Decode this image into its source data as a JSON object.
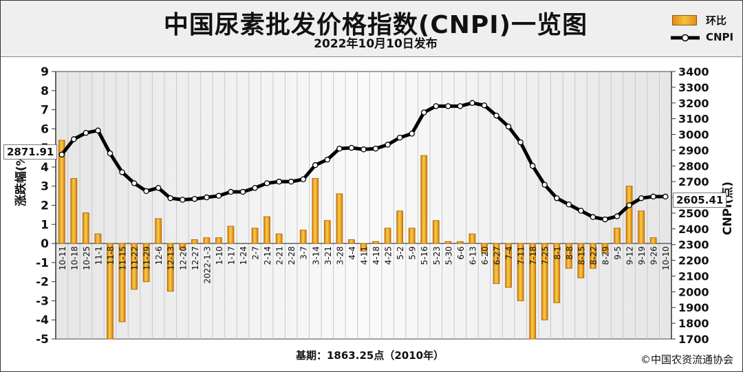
{
  "title": "中国尿素批发价格指数(CNPI)一览图",
  "subtitle": "2022年10月10日发布",
  "footer": {
    "base": "基期：1863.25点（2010年）",
    "copyright": "©中国农资流通协会"
  },
  "legend": {
    "bar_label": "环比",
    "line_label": "CNPI"
  },
  "callouts": {
    "left": "2871.91",
    "right": "2605.41"
  },
  "colors": {
    "bar_fill": "#f2b632",
    "bar_edge": "#b86a10",
    "line": "#000000",
    "marker": "#ffffff"
  },
  "chart_data": {
    "type": "bar",
    "x_labels": [
      "10-11",
      "10-18",
      "10-25",
      "11-1",
      "11-8",
      "11-15",
      "11-22",
      "11-29",
      "12-6",
      "12-13",
      "12-20",
      "12-27",
      "2022-1-3",
      "1-10",
      "1-17",
      "1-24",
      "2-7",
      "2-14",
      "2-21",
      "2-28",
      "3-7",
      "3-14",
      "3-21",
      "3-28",
      "4-4",
      "4-11",
      "4-18",
      "4-25",
      "5-2",
      "5-9",
      "5-16",
      "5-23",
      "5-30",
      "6-6",
      "6-13",
      "6-20",
      "6-27",
      "7-4",
      "7-11",
      "7-18",
      "7-25",
      "8-1",
      "8-8",
      "8-15",
      "8-22",
      "8-29",
      "9-5",
      "9-12",
      "9-19",
      "9-26",
      "10-10"
    ],
    "series": [
      {
        "name": "环比",
        "axis": "left",
        "values": [
          5.4,
          3.4,
          1.6,
          0.5,
          -5.0,
          -4.1,
          -2.4,
          -2.0,
          1.3,
          -2.5,
          -0.3,
          0.2,
          0.3,
          0.3,
          0.9,
          0.0,
          0.8,
          1.4,
          0.5,
          0.0,
          0.7,
          3.4,
          1.2,
          2.6,
          0.2,
          -0.4,
          0.1,
          0.8,
          1.7,
          0.8,
          4.6,
          1.2,
          0.1,
          0.1,
          0.5,
          -0.5,
          -2.1,
          -2.3,
          -3.0,
          -5.0,
          -4.0,
          -3.1,
          -1.3,
          -1.8,
          -1.3,
          -0.5,
          0.8,
          3.0,
          1.7,
          0.3,
          0.0
        ]
      },
      {
        "name": "CNPI",
        "axis": "right",
        "type": "line",
        "values": [
          2872,
          2970,
          3010,
          3025,
          2880,
          2760,
          2690,
          2640,
          2660,
          2595,
          2585,
          2590,
          2600,
          2610,
          2635,
          2635,
          2660,
          2690,
          2700,
          2700,
          2715,
          2805,
          2840,
          2910,
          2915,
          2905,
          2910,
          2935,
          2980,
          3005,
          3140,
          3180,
          3180,
          3180,
          3200,
          3185,
          3120,
          3050,
          2950,
          2800,
          2680,
          2595,
          2555,
          2515,
          2475,
          2460,
          2480,
          2550,
          2595,
          2605,
          2605
        ]
      }
    ],
    "left_axis": {
      "label": "涨跌幅(%)",
      "min": -5,
      "max": 9,
      "ticks": [
        -5,
        -4,
        -3,
        -2,
        -1,
        0,
        1,
        2,
        3,
        4,
        5,
        6,
        7,
        8,
        9
      ]
    },
    "right_axis": {
      "label": "CNPI(点)",
      "min": 1700,
      "max": 3400,
      "ticks": [
        1700,
        1800,
        1900,
        2000,
        2100,
        2200,
        2300,
        2400,
        2500,
        2600,
        2700,
        2800,
        2900,
        3000,
        3100,
        3200,
        3300,
        3400
      ]
    },
    "grid": "vertical"
  }
}
